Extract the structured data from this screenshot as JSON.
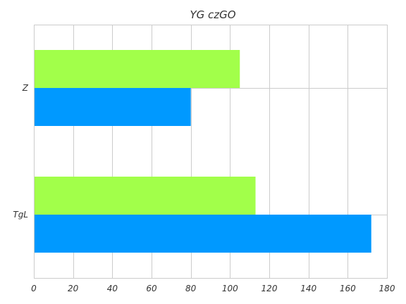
{
  "chart_data": {
    "type": "bar",
    "orientation": "horizontal",
    "title": "YG czGO",
    "xlabel": "",
    "ylabel": "",
    "categories": [
      "Z",
      "TgL"
    ],
    "xlim": [
      0,
      180
    ],
    "xticks": [
      0,
      20,
      40,
      60,
      80,
      100,
      120,
      140,
      160,
      180
    ],
    "grid": true,
    "legend": "none",
    "series": [
      {
        "color": "#a2ff4a",
        "values": [
          105,
          113
        ]
      },
      {
        "color": "#0099ff",
        "values": [
          80,
          172
        ]
      }
    ]
  }
}
